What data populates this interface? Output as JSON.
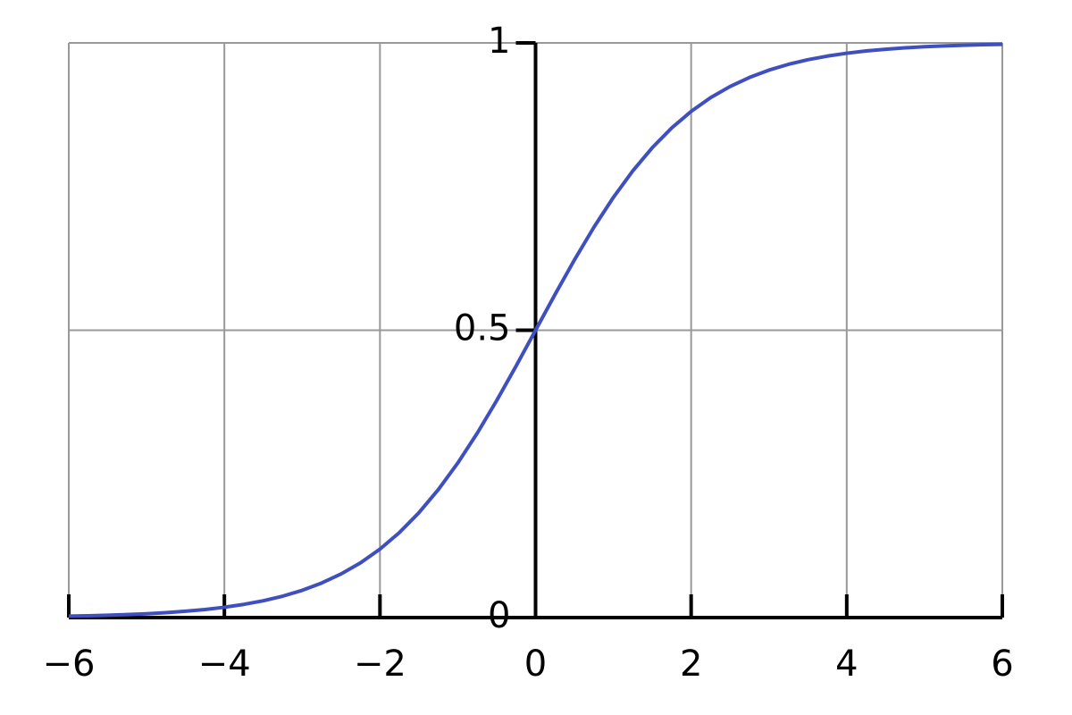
{
  "chart_data": {
    "type": "line",
    "x": [
      -6,
      -5.75,
      -5.5,
      -5.25,
      -5,
      -4.75,
      -4.5,
      -4.25,
      -4,
      -3.75,
      -3.5,
      -3.25,
      -3,
      -2.75,
      -2.5,
      -2.25,
      -2,
      -1.75,
      -1.5,
      -1.25,
      -1,
      -0.75,
      -0.5,
      -0.25,
      0,
      0.25,
      0.5,
      0.75,
      1,
      1.25,
      1.5,
      1.75,
      2,
      2.25,
      2.5,
      2.75,
      3,
      3.25,
      3.5,
      3.75,
      4,
      4.25,
      4.5,
      4.75,
      5,
      5.25,
      5.5,
      5.75,
      6
    ],
    "series": [
      {
        "color": "#3f4fbf",
        "values": [
          0.0025,
          0.0032,
          0.0041,
          0.0052,
          0.0067,
          0.0086,
          0.011,
          0.014,
          0.018,
          0.023,
          0.0293,
          0.0373,
          0.0474,
          0.0601,
          0.0759,
          0.0953,
          0.1192,
          0.148,
          0.1824,
          0.2227,
          0.2689,
          0.3208,
          0.3775,
          0.4378,
          0.5,
          0.5622,
          0.6225,
          0.6792,
          0.7311,
          0.7773,
          0.8176,
          0.852,
          0.8808,
          0.9047,
          0.9241,
          0.9399,
          0.9526,
          0.9627,
          0.9707,
          0.977,
          0.982,
          0.986,
          0.989,
          0.9914,
          0.9933,
          0.9948,
          0.9959,
          0.9968,
          0.9975
        ]
      }
    ],
    "xlim": [
      -6,
      6
    ],
    "xticks": [
      {
        "value": -6,
        "label": "−6"
      },
      {
        "value": -4,
        "label": "−4"
      },
      {
        "value": -2,
        "label": "−2"
      },
      0,
      2,
      4,
      6
    ],
    "ylim": [
      0,
      1
    ],
    "yticks": [
      0,
      0.5,
      1
    ],
    "grid": true
  }
}
